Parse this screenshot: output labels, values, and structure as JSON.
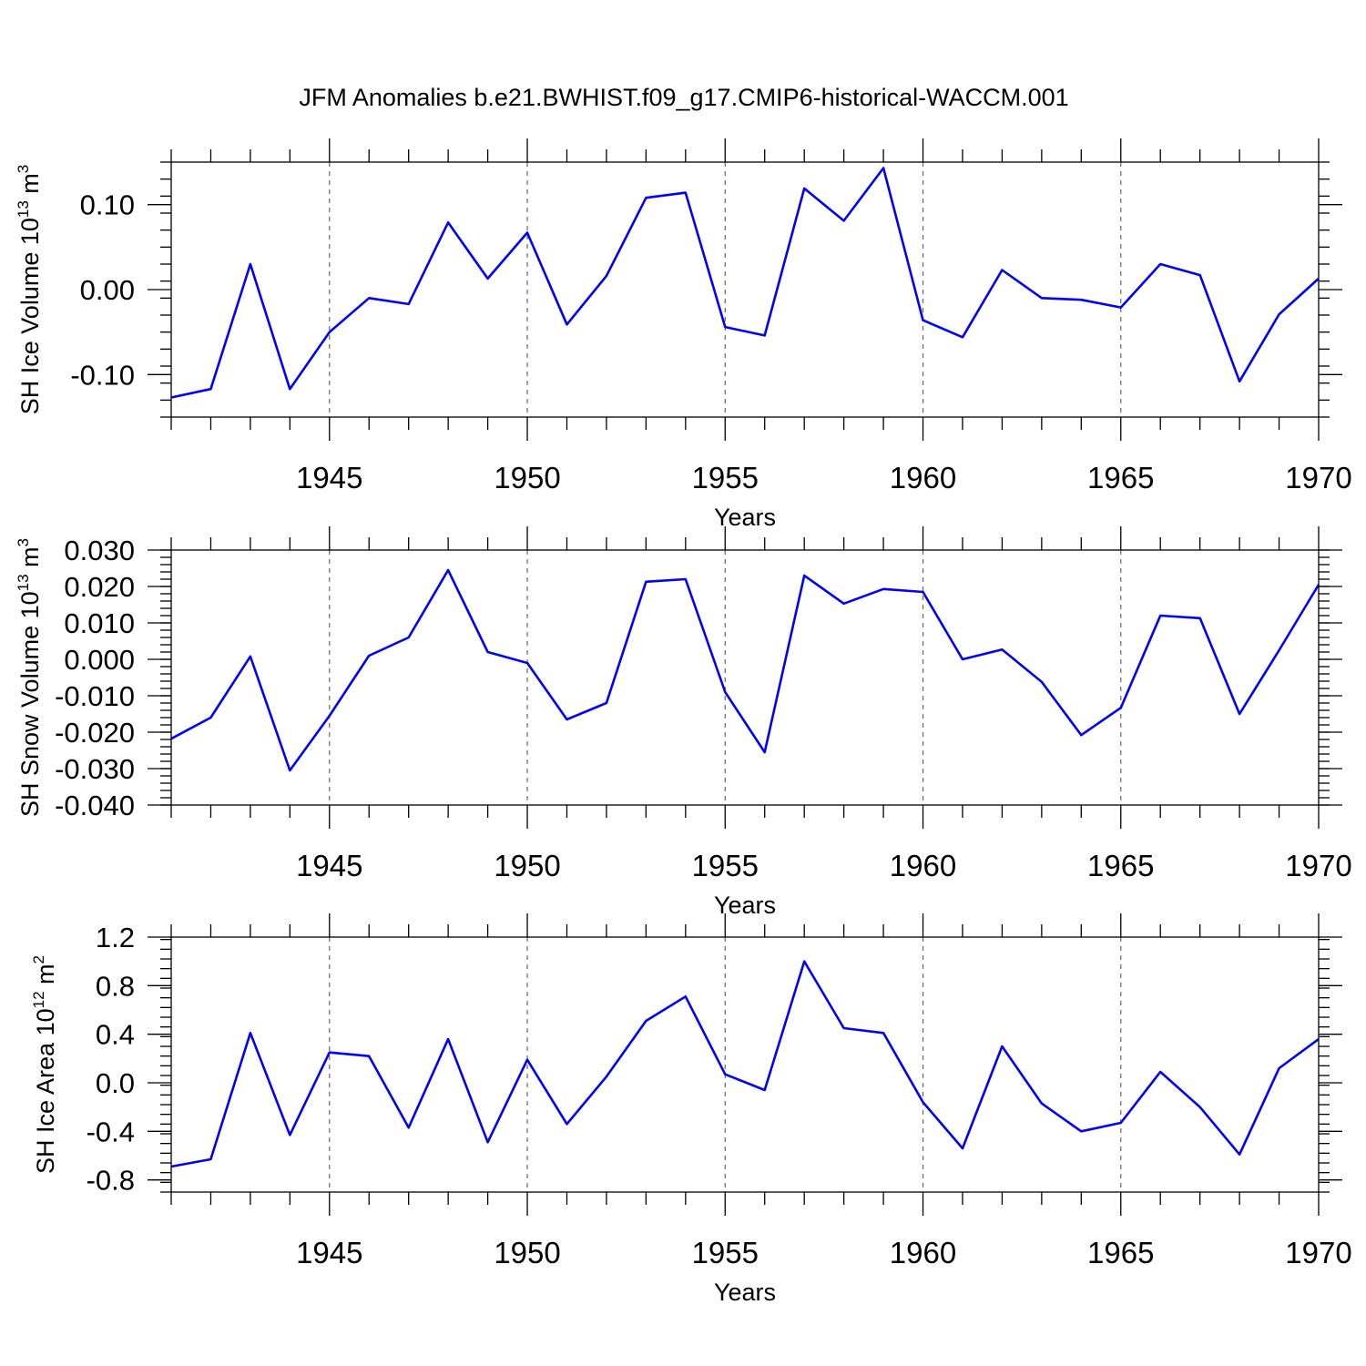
{
  "title": "JFM Anomalies b.e21.BWHIST.f09_g17.CMIP6-historical-WACCM.001",
  "colors": {
    "series": "#0000ff",
    "frame": "#000000",
    "grid": "#666666"
  },
  "chart_data": [
    {
      "type": "line",
      "title": "",
      "xlabel": "Years",
      "ylabel": {
        "prefix": "SH Ice Volume 10",
        "exponent": "13",
        "unit": " m",
        "unit_exponent": "3"
      },
      "xlim": [
        1941,
        1970
      ],
      "ylim": [
        -0.15,
        0.15
      ],
      "grid": "dashed vertical lines at x major ticks",
      "x_ticks": [
        1945,
        1950,
        1955,
        1960,
        1965,
        1970
      ],
      "x_tick_labels": [
        "1945",
        "1950",
        "1955",
        "1960",
        "1965",
        "1970"
      ],
      "y_ticks": [
        -0.1,
        0.0,
        0.1
      ],
      "y_tick_labels": [
        "-0.10",
        "0.00",
        "0.10"
      ],
      "y_minor_step": 0.02,
      "x": [
        1941,
        1942,
        1943,
        1944,
        1945,
        1946,
        1947,
        1948,
        1949,
        1950,
        1951,
        1952,
        1953,
        1954,
        1955,
        1956,
        1957,
        1958,
        1959,
        1960,
        1961,
        1962,
        1963,
        1964,
        1965,
        1966,
        1967,
        1968,
        1969,
        1970
      ],
      "series": [
        {
          "values": [
            -0.127,
            -0.117,
            0.03,
            -0.117,
            -0.05,
            -0.01,
            -0.017,
            0.079,
            0.013,
            0.067,
            -0.041,
            0.016,
            0.108,
            0.114,
            -0.044,
            -0.054,
            0.119,
            0.081,
            0.143,
            -0.036,
            -0.056,
            0.023,
            -0.01,
            -0.012,
            -0.021,
            0.03,
            0.017,
            -0.108,
            -0.029,
            0.013
          ]
        }
      ]
    },
    {
      "type": "line",
      "title": "",
      "xlabel": "Years",
      "ylabel": {
        "prefix": "SH Snow Volume 10",
        "exponent": "13",
        "unit": " m",
        "unit_exponent": "3"
      },
      "xlim": [
        1941,
        1970
      ],
      "ylim": [
        -0.04,
        0.03
      ],
      "grid": "dashed vertical lines at x major ticks",
      "x_ticks": [
        1945,
        1950,
        1955,
        1960,
        1965,
        1970
      ],
      "x_tick_labels": [
        "1945",
        "1950",
        "1955",
        "1960",
        "1965",
        "1970"
      ],
      "y_ticks": [
        -0.04,
        -0.03,
        -0.02,
        -0.01,
        0.0,
        0.01,
        0.02,
        0.03
      ],
      "y_tick_labels": [
        "-0.040",
        "-0.030",
        "-0.020",
        "-0.010",
        "0.000",
        "0.010",
        "0.020",
        "0.030"
      ],
      "y_minor_step": 0.002,
      "x": [
        1941,
        1942,
        1943,
        1944,
        1945,
        1946,
        1947,
        1948,
        1949,
        1950,
        1951,
        1952,
        1953,
        1954,
        1955,
        1956,
        1957,
        1958,
        1959,
        1960,
        1961,
        1962,
        1963,
        1964,
        1965,
        1966,
        1967,
        1968,
        1969,
        1970
      ],
      "series": [
        {
          "values": [
            -0.0218,
            -0.016,
            0.0008,
            -0.0305,
            -0.0155,
            0.001,
            0.006,
            0.0245,
            0.002,
            -0.001,
            -0.0165,
            -0.012,
            0.0213,
            0.022,
            -0.009,
            -0.0255,
            0.023,
            0.0153,
            0.0193,
            0.0185,
            0.0,
            0.0027,
            -0.0062,
            -0.0208,
            -0.0133,
            0.012,
            0.0113,
            -0.015,
            0.0025,
            0.0205
          ]
        }
      ]
    },
    {
      "type": "line",
      "title": "",
      "xlabel": "Years",
      "ylabel": {
        "prefix": "SH Ice Area 10",
        "exponent": "12",
        "unit": " m",
        "unit_exponent": "2"
      },
      "xlim": [
        1941,
        1970
      ],
      "ylim": [
        -0.9,
        1.2
      ],
      "grid": "dashed vertical lines at x major ticks",
      "x_ticks": [
        1945,
        1950,
        1955,
        1960,
        1965,
        1970
      ],
      "x_tick_labels": [
        "1945",
        "1950",
        "1955",
        "1960",
        "1965",
        "1970"
      ],
      "y_ticks": [
        -0.8,
        -0.4,
        0.0,
        0.4,
        0.8,
        1.2
      ],
      "y_tick_labels": [
        "-0.8",
        "-0.4",
        "0.0",
        "0.4",
        "0.8",
        "1.2"
      ],
      "y_minor_step": 0.08,
      "x": [
        1941,
        1942,
        1943,
        1944,
        1945,
        1946,
        1947,
        1948,
        1949,
        1950,
        1951,
        1952,
        1953,
        1954,
        1955,
        1956,
        1957,
        1958,
        1959,
        1960,
        1961,
        1962,
        1963,
        1964,
        1965,
        1966,
        1967,
        1968,
        1969,
        1970
      ],
      "series": [
        {
          "values": [
            -0.69,
            -0.63,
            0.41,
            -0.43,
            0.25,
            0.22,
            -0.37,
            0.36,
            -0.49,
            0.19,
            -0.34,
            0.05,
            0.51,
            0.71,
            0.07,
            -0.06,
            1.0,
            0.45,
            0.41,
            -0.16,
            -0.54,
            0.3,
            -0.17,
            -0.4,
            -0.33,
            0.09,
            -0.2,
            -0.59,
            0.12,
            0.36
          ]
        }
      ]
    }
  ]
}
